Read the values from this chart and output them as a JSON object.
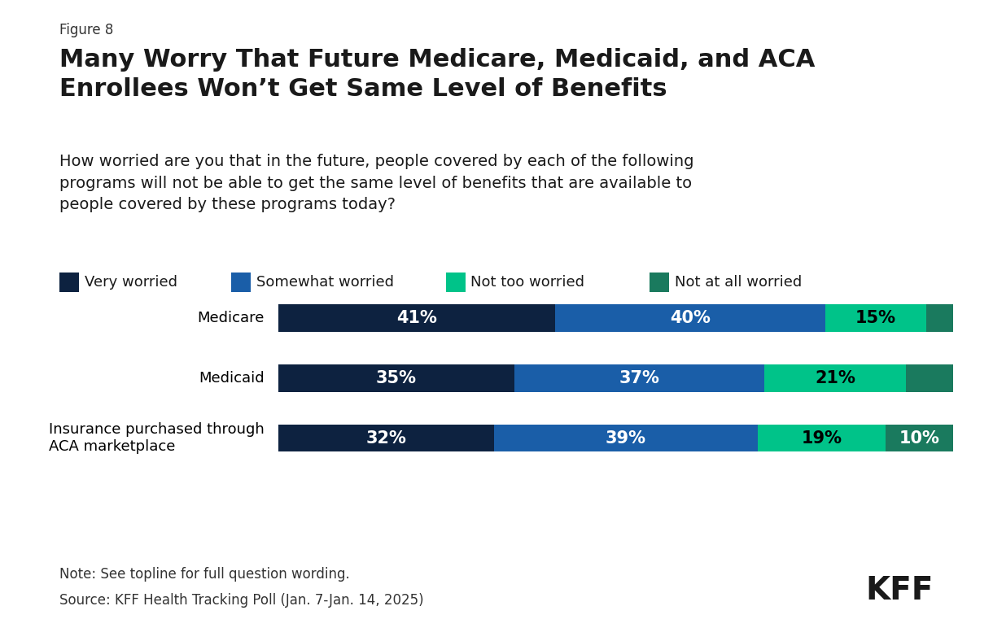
{
  "figure_label": "Figure 8",
  "title": "Many Worry That Future Medicare, Medicaid, and ACA\nEnrollees Won’t Get Same Level of Benefits",
  "subtitle": "How worried are you that in the future, people covered by each of the following\nprograms will not be able to get the same level of benefits that are available to\npeople covered by these programs today?",
  "categories": [
    "Medicare",
    "Medicaid",
    "Insurance purchased through\nACA marketplace"
  ],
  "legend_labels": [
    "Very worried",
    "Somewhat worried",
    "Not too worried",
    "Not at all worried"
  ],
  "colors": [
    "#0d2240",
    "#1a5ea8",
    "#00c389",
    "#1a7a5e"
  ],
  "data": [
    [
      41,
      40,
      15,
      4
    ],
    [
      35,
      37,
      21,
      7
    ],
    [
      32,
      39,
      19,
      10
    ]
  ],
  "note": "Note: See topline for full question wording.",
  "source": "Source: KFF Health Tracking Poll (Jan. 7-Jan. 14, 2025)",
  "background_color": "#ffffff",
  "bar_height": 0.45,
  "label_fontsize": 15,
  "tick_fontsize": 13,
  "legend_fontsize": 13,
  "title_fontsize": 22,
  "subtitle_fontsize": 14,
  "note_fontsize": 12,
  "kff_fontsize": 28
}
